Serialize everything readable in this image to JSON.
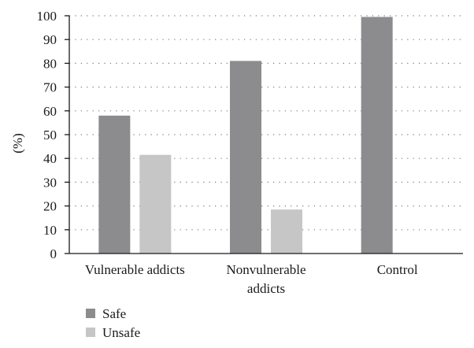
{
  "chart_data": {
    "type": "bar",
    "title": "",
    "xlabel": "",
    "ylabel": "(%)",
    "ylim": [
      0,
      100
    ],
    "yticks": [
      0,
      10,
      20,
      30,
      40,
      50,
      60,
      70,
      80,
      90,
      100
    ],
    "grid": "horizontal-dotted",
    "legend_position": "bottom-left",
    "categories": [
      [
        "Vulnerable addicts"
      ],
      [
        "Nonvulnerable",
        "addicts"
      ],
      [
        "Control"
      ]
    ],
    "series": [
      {
        "name": "Safe",
        "color": "#8c8c8e",
        "values": [
          58,
          81,
          99.5
        ]
      },
      {
        "name": "Unsafe",
        "color": "#c6c6c6",
        "values": [
          41.5,
          18.5,
          0
        ]
      }
    ]
  }
}
